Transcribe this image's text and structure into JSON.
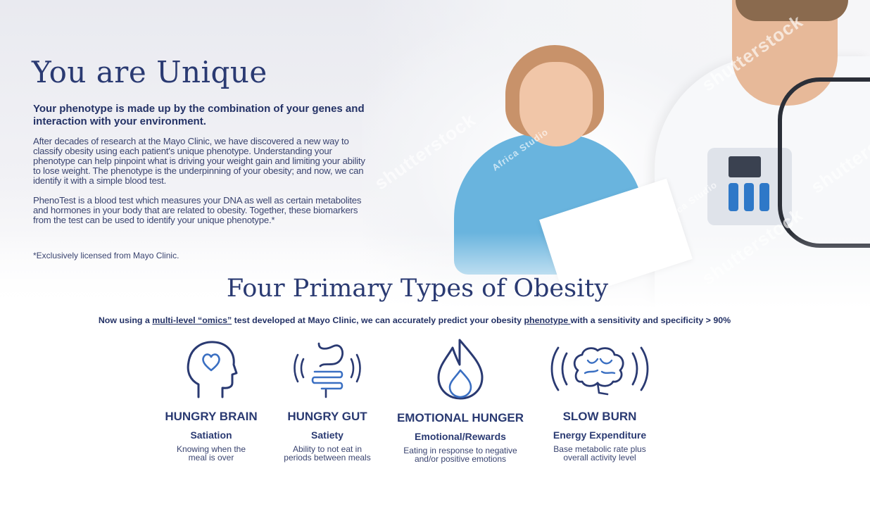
{
  "hero": {
    "title": "You are Unique",
    "lead": "Your phenotype is made up by the combination of your genes and interaction with your environment.",
    "paragraph1": "After decades of research at the Mayo Clinic, we have discovered a new way to classify obesity using each patient's unique phenotype. Understanding your phenotype can help pinpoint what is driving your weight gain and limiting your ability to lose weight. The phenotype is the underpinning of your obesity; and now, we can identify it with a simple blood test.",
    "paragraph2": "PhenoTest is a blood test which measures your DNA as well as certain metabolites and hormones in your body that are related to obesity. Together, these biomarkers from the test can be used to identify your unique phenotype.*",
    "footnote": "*Exclusively licensed from Mayo Clinic.",
    "watermarks": [
      "shutterstock",
      "shutterstock",
      "shutterstock",
      "shutterstock",
      "Africa Studio",
      "Africa Studio"
    ]
  },
  "section": {
    "title": "Four Primary Types of Obesity",
    "sub_before": "Now using a ",
    "sub_link1": "multi-level “omics”",
    "sub_middle": " test developed at Mayo Clinic, we can accurately predict your obesity ",
    "sub_link2": "phenotype ",
    "sub_after": "with a sensitivity and specificity > 90%"
  },
  "types": [
    {
      "name": "HUNGRY BRAIN",
      "subtitle": "Satiation",
      "desc1": "Knowing when the",
      "desc2": "meal is over",
      "icon": "head-heart-icon"
    },
    {
      "name": "HUNGRY GUT",
      "subtitle": "Satiety",
      "desc1": "Ability to not eat in",
      "desc2": "periods between meals",
      "icon": "stomach-icon"
    },
    {
      "name": "EMOTIONAL HUNGER",
      "subtitle": "Emotional/Rewards",
      "desc1": "Eating in response to negative",
      "desc2": "and/or positive emotions",
      "icon": "flame-icon"
    },
    {
      "name": "SLOW BURN",
      "subtitle": "Energy Expenditure",
      "desc1": "Base metabolic rate plus",
      "desc2": "overall activity level",
      "icon": "brain-icon"
    }
  ],
  "colors": {
    "navy": "#2a3a72",
    "text": "#3a4470",
    "shirt": "#69b4de"
  }
}
